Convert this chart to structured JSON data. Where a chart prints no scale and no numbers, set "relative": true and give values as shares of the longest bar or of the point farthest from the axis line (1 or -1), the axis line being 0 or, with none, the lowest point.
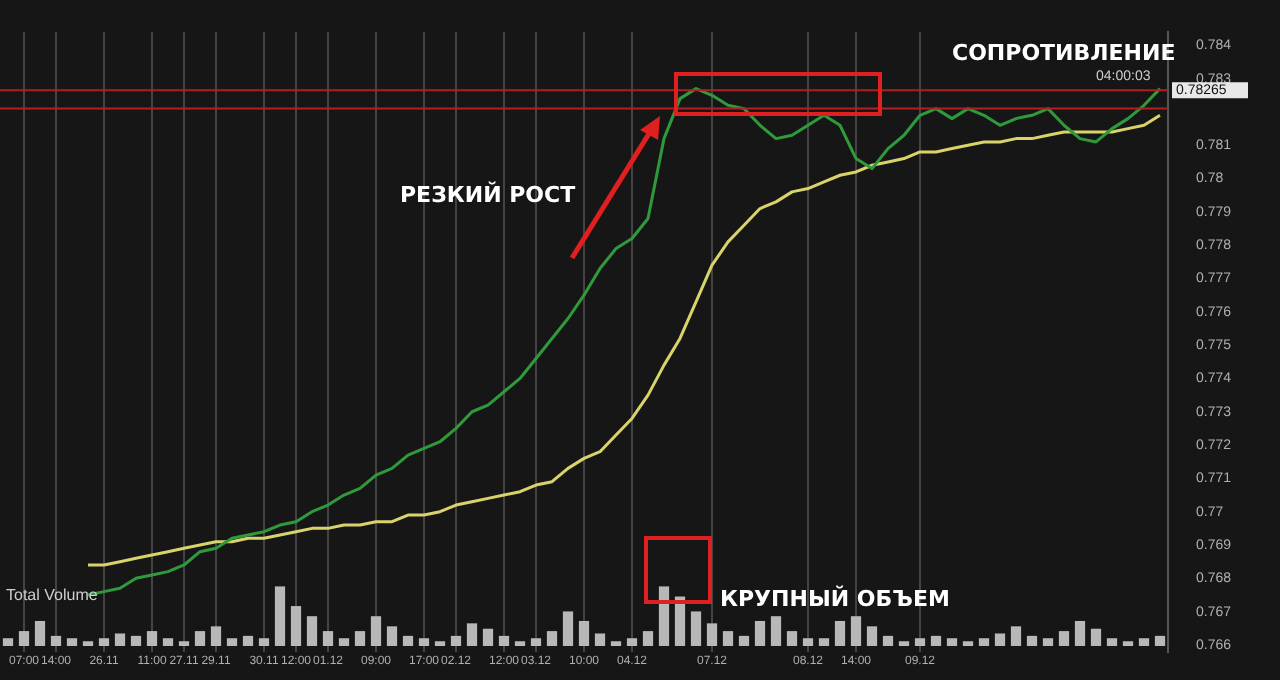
{
  "chart_data": [
    {
      "type": "line",
      "categories": [
        null,
        "07:00",
        null,
        "14:00",
        null,
        null,
        "26.11",
        null,
        null,
        "11:00",
        null,
        "27.11",
        null,
        "29.11",
        null,
        null,
        "30.11",
        null,
        "12:00",
        null,
        "01.12",
        null,
        null,
        "09:00",
        null,
        null,
        "17:00",
        null,
        "02.12",
        null,
        null,
        "12:00",
        null,
        "03.12",
        null,
        null,
        "10:00",
        null,
        null,
        "04.12",
        null,
        null,
        null,
        null,
        "07.12",
        null,
        null,
        null,
        null,
        null,
        "08.12",
        null,
        null,
        "14:00",
        null,
        null,
        null,
        "09.12",
        null,
        null,
        null,
        null,
        null,
        null,
        null,
        null,
        null,
        null,
        null,
        null,
        null,
        null,
        null
      ],
      "series": [
        {
          "color": "#2f9a3c",
          "values": [
            null,
            null,
            null,
            null,
            null,
            0.7675,
            0.7676,
            0.7677,
            0.768,
            0.7681,
            0.7682,
            0.7684,
            0.7688,
            0.7689,
            0.7692,
            0.7693,
            0.7694,
            0.7696,
            0.7697,
            0.77,
            0.7702,
            0.7705,
            0.7707,
            0.7711,
            0.7713,
            0.7717,
            0.7719,
            0.7721,
            0.7725,
            0.773,
            0.7732,
            0.7736,
            0.774,
            0.7746,
            0.7752,
            0.7758,
            0.7765,
            0.7773,
            0.7779,
            0.7782,
            0.7788,
            0.7812,
            0.7824,
            0.7827,
            0.7825,
            0.7822,
            0.7821,
            0.7816,
            0.7812,
            0.7813,
            0.7816,
            0.7819,
            0.7816,
            0.7806,
            0.7803,
            0.7809,
            0.7813,
            0.7819,
            0.7821,
            0.7818,
            0.7821,
            0.7819,
            0.7816,
            0.7818,
            0.7819,
            0.7821,
            0.7816,
            0.7812,
            0.7811,
            0.7815,
            0.7818,
            0.7822,
            0.7827
          ]
        },
        {
          "color": "#d9d46a",
          "values": [
            null,
            null,
            null,
            null,
            null,
            0.7684,
            0.7684,
            0.7685,
            0.7686,
            0.7687,
            0.7688,
            0.7689,
            0.769,
            0.7691,
            0.7691,
            0.7692,
            0.7692,
            0.7693,
            0.7694,
            0.7695,
            0.7695,
            0.7696,
            0.7696,
            0.7697,
            0.7697,
            0.7699,
            0.7699,
            0.77,
            0.7702,
            0.7703,
            0.7704,
            0.7705,
            0.7706,
            0.7708,
            0.7709,
            0.7713,
            0.7716,
            0.7718,
            0.7723,
            0.7728,
            0.7735,
            0.7744,
            0.7752,
            0.7763,
            0.7774,
            0.7781,
            0.7786,
            0.7791,
            0.7793,
            0.7796,
            0.7797,
            0.7799,
            0.7801,
            0.7802,
            0.7804,
            0.7805,
            0.7806,
            0.7808,
            0.7808,
            0.7809,
            0.781,
            0.7811,
            0.7811,
            0.7812,
            0.7812,
            0.7813,
            0.7814,
            0.7814,
            0.7814,
            0.7814,
            0.7815,
            0.7816,
            0.7819
          ]
        }
      ],
      "ylim": [
        0.7658,
        0.7844
      ],
      "yticks": [
        0.766,
        0.767,
        0.768,
        0.769,
        0.77,
        0.771,
        0.772,
        0.773,
        0.774,
        0.775,
        0.776,
        0.777,
        0.778,
        0.779,
        0.78,
        0.781,
        0.783,
        0.784
      ],
      "ref_lines": [
        {
          "axis": "y",
          "value": 0.78265,
          "label": "0.78265",
          "color": "#b02020"
        },
        {
          "axis": "y",
          "value": 0.7821,
          "label": null,
          "color": "#b02020"
        }
      ],
      "annotations": [
        "СОПРОТИВЛЕНИЕ",
        "РЕЗКИЙ РОСТ",
        "04:00:03"
      ],
      "grid": "x",
      "legend": false,
      "marker": "none",
      "line_style": "solid"
    },
    {
      "type": "bar",
      "relative": true,
      "title": "Total Volume",
      "color": "#b8b8b8",
      "categories": [
        null,
        null,
        null,
        null,
        null,
        null,
        null,
        null,
        null,
        null,
        null,
        null,
        null,
        null,
        null,
        null,
        null,
        null,
        null,
        null,
        null,
        null,
        null,
        null,
        null,
        null,
        null,
        null,
        null,
        null,
        null,
        null,
        null,
        null,
        null,
        null,
        null,
        null,
        null,
        null,
        null,
        null,
        null,
        null,
        null,
        null,
        null,
        null,
        null,
        null,
        null,
        null,
        null,
        null,
        null,
        null,
        null,
        null,
        null,
        null,
        null,
        null,
        null,
        null,
        null,
        null,
        null,
        null,
        null,
        null,
        null,
        null,
        null
      ],
      "values": [
        0.13,
        0.25,
        0.42,
        0.17,
        0.13,
        0.08,
        0.13,
        0.21,
        0.17,
        0.25,
        0.13,
        0.08,
        0.25,
        0.33,
        0.13,
        0.17,
        0.13,
        1,
        0.67,
        0.5,
        0.25,
        0.13,
        0.25,
        0.5,
        0.33,
        0.17,
        0.13,
        0.08,
        0.17,
        0.38,
        0.29,
        0.17,
        0.08,
        0.13,
        0.25,
        0.58,
        0.42,
        0.21,
        0.08,
        0.13,
        0.25,
        1,
        0.83,
        0.58,
        0.38,
        0.25,
        0.17,
        0.42,
        0.5,
        0.25,
        0.13,
        0.13,
        0.42,
        0.5,
        0.33,
        0.17,
        0.08,
        0.13,
        0.17,
        0.13,
        0.08,
        0.13,
        0.21,
        0.33,
        0.17,
        0.13,
        0.25,
        0.42,
        0.29,
        0.13,
        0.08,
        0.13,
        0.17
      ],
      "annotations": [
        "КРУПНЫЙ ОБЪЕМ"
      ],
      "grid": false,
      "legend": false,
      "tick_labels": false
    }
  ]
}
